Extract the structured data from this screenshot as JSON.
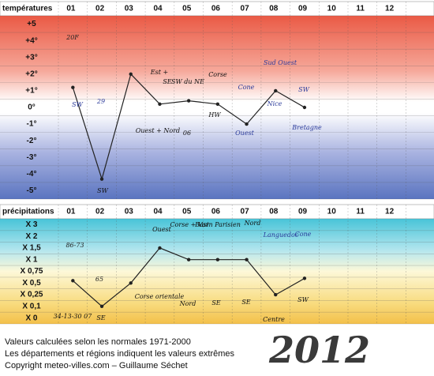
{
  "charts": [
    {
      "type": "line",
      "title": "températures",
      "categories": [
        "01",
        "02",
        "03",
        "04",
        "05",
        "06",
        "07",
        "08",
        "09",
        "10",
        "11",
        "12"
      ],
      "values": [
        1.2,
        -4.3,
        2,
        0.2,
        0.4,
        0.2,
        -1,
        1,
        0,
        null,
        null,
        null
      ],
      "color": "#222222",
      "ylim": [
        -5.5,
        5.5
      ],
      "yticks": [
        {
          "value": 5,
          "label": "+5"
        },
        {
          "value": 4,
          "label": "+4°"
        },
        {
          "value": 3,
          "label": "+3°"
        },
        {
          "value": 2,
          "label": "+2°"
        },
        {
          "value": 1,
          "label": "+1°"
        },
        {
          "value": 0,
          "label": "0°"
        },
        {
          "value": -1,
          "label": "-1°"
        },
        {
          "value": -2,
          "label": "-2°"
        },
        {
          "value": -3,
          "label": "-3°"
        },
        {
          "value": -4,
          "label": "-4°"
        },
        {
          "value": -5,
          "label": "-5°"
        }
      ],
      "annotations": [
        "20F",
        "SW",
        "29",
        "Est +",
        "SE",
        "SW du NE",
        "Corse",
        "Sud Ouest",
        "Cone",
        "SW",
        "Nice",
        "Ouest + Nord",
        "06",
        "HW",
        "Ouest",
        "Bretagne",
        "SW"
      ]
    },
    {
      "type": "line",
      "title": "précipitations",
      "categories": [
        "01",
        "02",
        "03",
        "04",
        "05",
        "06",
        "07",
        "08",
        "09",
        "10",
        "11",
        "12"
      ],
      "values": [
        0.55,
        0.1,
        0.5,
        1.5,
        1,
        1,
        1,
        0.25,
        0.6,
        null,
        null,
        null
      ],
      "color": "#222222",
      "ylim": [
        0,
        3
      ],
      "yticks": [
        {
          "value": 3,
          "label": "X 3"
        },
        {
          "value": 2,
          "label": "X 2"
        },
        {
          "value": 1.5,
          "label": "X 1,5"
        },
        {
          "value": 1,
          "label": "X 1"
        },
        {
          "value": 0.75,
          "label": "X 0,75"
        },
        {
          "value": 0.5,
          "label": "X 0,5"
        },
        {
          "value": 0.25,
          "label": "X 0,25"
        },
        {
          "value": 0.1,
          "label": "X 0,1"
        },
        {
          "value": 0,
          "label": "X 0"
        }
      ],
      "annotations": [
        "86-73",
        "65",
        "Ouest",
        "Corse + Var",
        "Basin Parisien",
        "Nord",
        "Languedoc",
        "Cone",
        "Corse orientale",
        "Nord",
        "SE",
        "SE",
        "SW",
        "34-13-30 07",
        "SE",
        "Centre"
      ]
    }
  ],
  "footer": [
    "Valeurs calculées selon les normales 1971-2000",
    "Les départements et régions indiquent les valeurs extrêmes",
    "Copyright meteo-villes.com – Guillaume Séchet"
  ],
  "year": "2012"
}
